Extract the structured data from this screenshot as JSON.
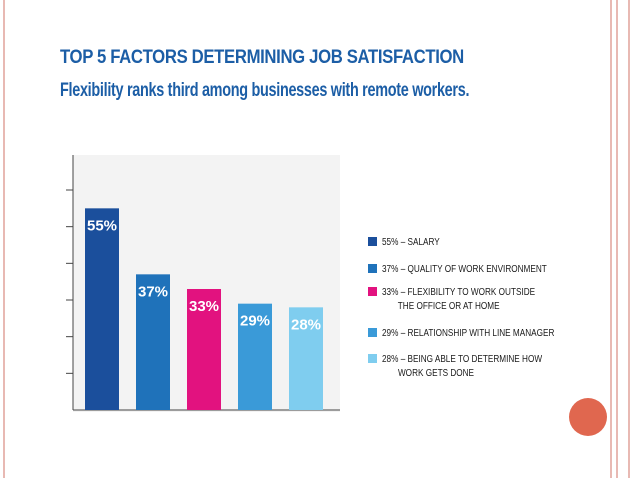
{
  "header": {
    "title": "TOP 5 FACTORS DETERMINING JOB SATISFACTION",
    "subtitle": "Flexibility ranks third among businesses with remote workers."
  },
  "chart_data": {
    "type": "bar",
    "title": "TOP 5 FACTORS DETERMINING JOB SATISFACTION",
    "subtitle": "Flexibility ranks third among businesses with remote workers.",
    "xlabel": "",
    "ylabel": "",
    "ylim": [
      0,
      60
    ],
    "grid": false,
    "legend_position": "right",
    "bars": [
      {
        "value": 55,
        "label": "55%",
        "color": "#1b4f9c",
        "legend": "55% – SALARY"
      },
      {
        "value": 37,
        "label": "37%",
        "color": "#1f72ba",
        "legend": "37% – QUALITY OF WORK ENVIRONMENT"
      },
      {
        "value": 33,
        "label": "33%",
        "color": "#e2127f",
        "legend": "33% – FLEXIBILITY TO WORK OUTSIDE\n       THE OFFICE OR AT HOME"
      },
      {
        "value": 29,
        "label": "29%",
        "color": "#3a9ad8",
        "legend": "29% – RELATIONSHIP WITH LINE MANAGER"
      },
      {
        "value": 28,
        "label": "28%",
        "color": "#7fcdef",
        "legend": "28% – BEING ABLE TO DETERMINE HOW\n       WORK GETS DONE"
      }
    ]
  },
  "colors": {
    "accent": "#1c5ea6",
    "frame": "#e8b9b3",
    "decor_circle": "#e0674f",
    "panel_bg": "#f3f3f3"
  }
}
